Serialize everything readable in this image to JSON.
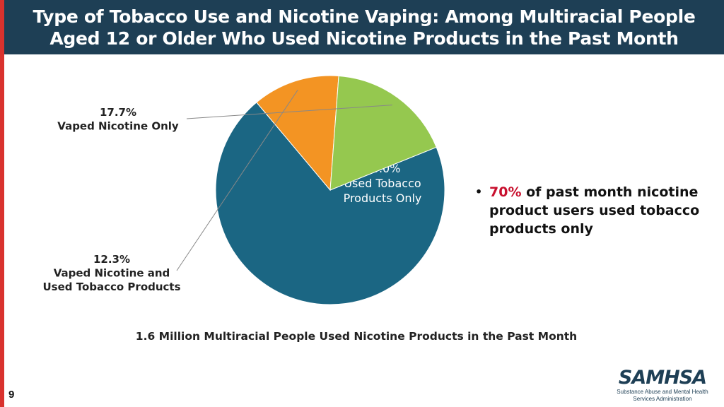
{
  "slide": {
    "title_lines": [
      "Type of Tobacco Use and Nicotine Vaping: Among Multiracial People",
      "Aged 12 or Older Who Used Nicotine Products in the Past Month"
    ],
    "page_number": "9",
    "footnote": "1.6 Million Multiracial People Used Nicotine Products in the Past Month",
    "bullet": {
      "highlight": "70%",
      "text": " of past month nicotine product users used tobacco products only"
    },
    "logo": {
      "word": "SAMHSA",
      "sub_lines": [
        "Substance Abuse and Mental Health",
        "Services Administration"
      ]
    }
  },
  "colors": {
    "header": "#1e3f55",
    "accent_red": "#d9322e",
    "highlight": "#c8102e"
  },
  "chart_data": {
    "type": "pie",
    "title": "",
    "start_angle_deg": -22,
    "slices": [
      {
        "label_lines": [
          "70.0%",
          "Used Tobacco",
          "Products Only"
        ],
        "value": 70.0,
        "color": "#1b6683",
        "label_inside": true
      },
      {
        "label_lines": [
          "12.3%",
          "Vaped Nicotine and",
          "Used Tobacco Products"
        ],
        "value": 12.3,
        "color": "#f39423",
        "label_inside": false
      },
      {
        "label_lines": [
          "17.7%",
          "Vaped Nicotine Only"
        ],
        "value": 17.7,
        "color": "#95c84f",
        "label_inside": false
      }
    ]
  }
}
